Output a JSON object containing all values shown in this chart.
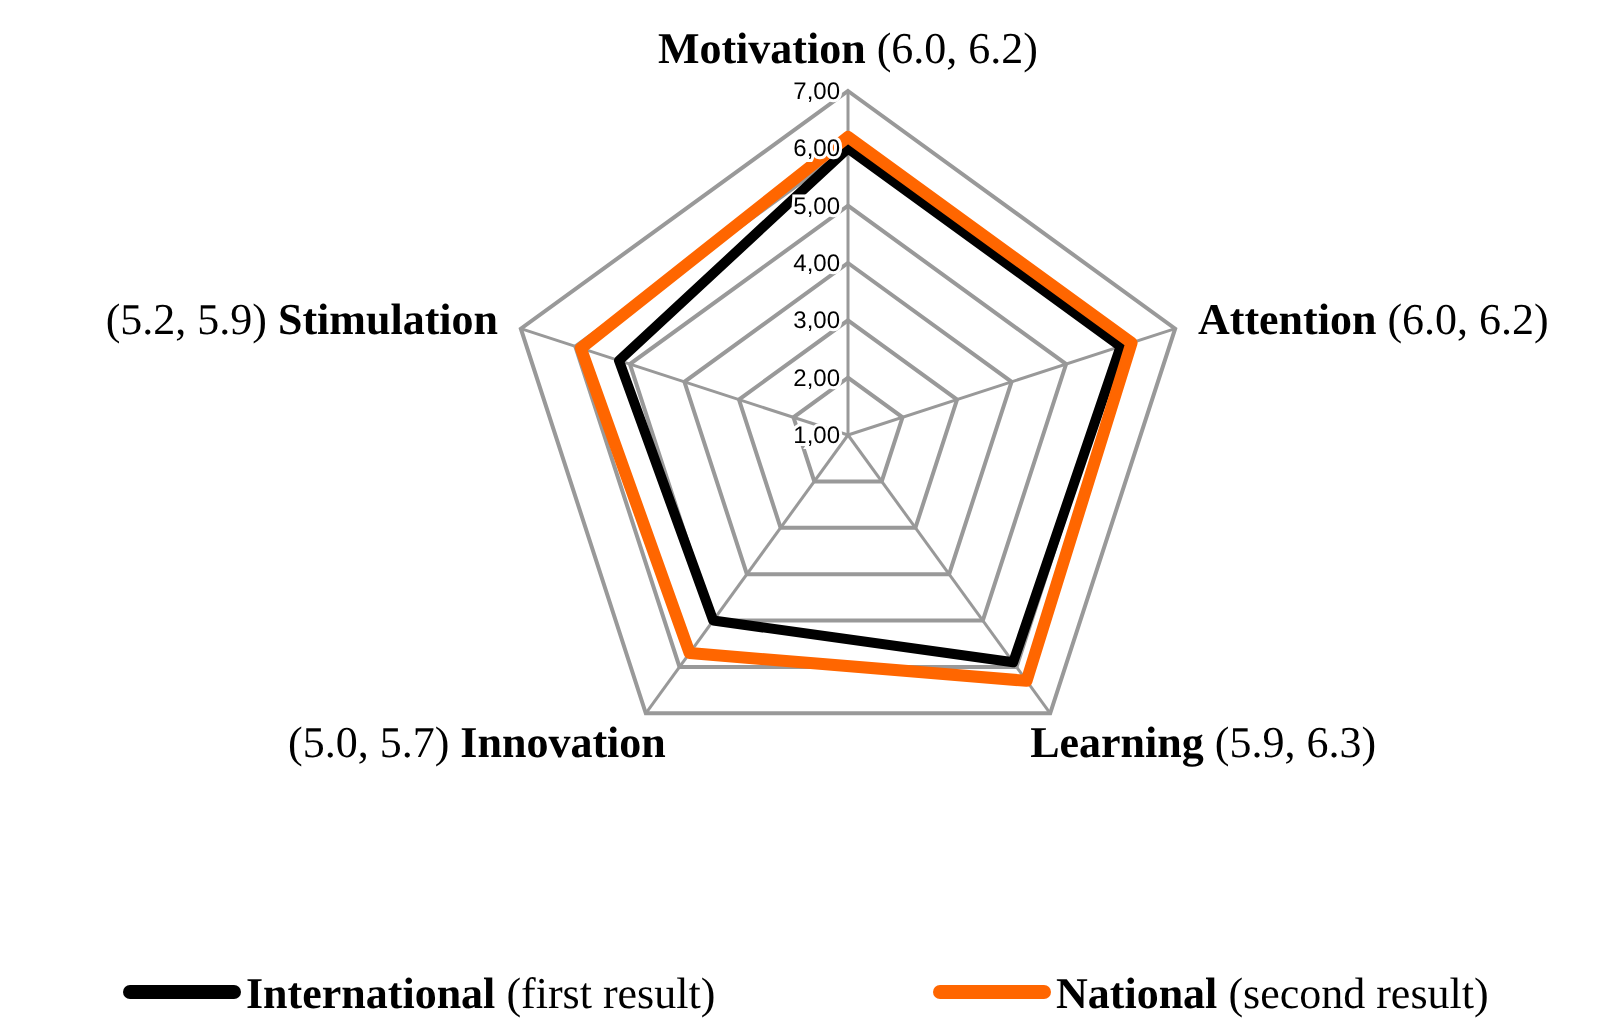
{
  "chart_data": {
    "type": "radar",
    "categories": [
      "Motivation",
      "Attention",
      "Learning",
      "Innovation",
      "Stimulation"
    ],
    "series": [
      {
        "name": "International (first result)",
        "color": "#000000",
        "values": [
          6.0,
          6.0,
          5.9,
          5.0,
          5.2
        ]
      },
      {
        "name": "National (second result)",
        "color": "#ff6600",
        "values": [
          6.2,
          6.2,
          6.3,
          5.7,
          5.9
        ]
      }
    ],
    "ylim": [
      1,
      7
    ],
    "yticks": [
      {
        "value": 1,
        "label": "1,00"
      },
      {
        "value": 2,
        "label": "2,00"
      },
      {
        "value": 3,
        "label": "3,00"
      },
      {
        "value": 4,
        "label": "4,00"
      },
      {
        "value": 5,
        "label": "5,00"
      },
      {
        "value": 6,
        "label": "6,00"
      },
      {
        "value": 7,
        "label": "7,00"
      }
    ],
    "grid": true,
    "legend": "bottom",
    "annotations": [
      {
        "text": "(6.0, 6.2)",
        "x": "Motivation"
      },
      {
        "text": "(6.0, 6.2)",
        "x": "Attention"
      },
      {
        "text": "(5.9, 6.3)",
        "x": "Learning"
      },
      {
        "text": "(5.0, 5.7)",
        "x": "Innovation"
      },
      {
        "text": "(5.2, 5.9)",
        "x": "Stimulation"
      }
    ]
  }
}
